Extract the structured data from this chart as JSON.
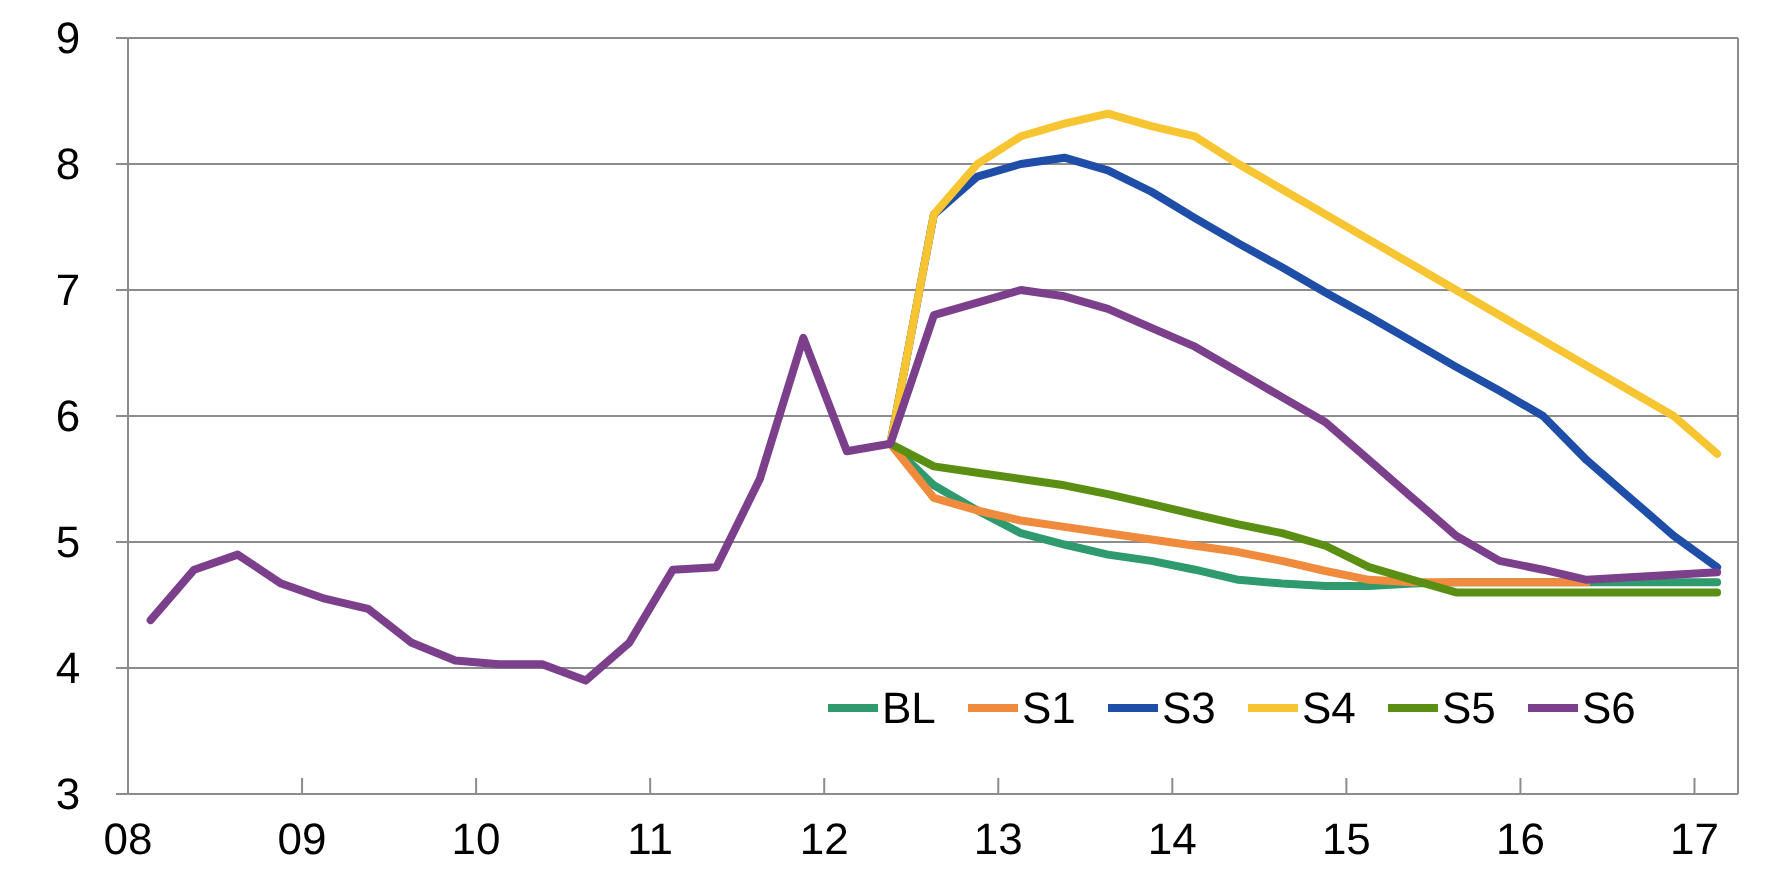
{
  "chart_data": {
    "type": "line",
    "xlim": [
      2008,
      2017.25
    ],
    "ylim": [
      3,
      9
    ],
    "yticks": [
      3,
      4,
      5,
      6,
      7,
      8,
      9
    ],
    "xticks": [
      {
        "value": 2008,
        "label": "08"
      },
      {
        "value": 2009,
        "label": "09"
      },
      {
        "value": 2010,
        "label": "10"
      },
      {
        "value": 2011,
        "label": "11"
      },
      {
        "value": 2012,
        "label": "12"
      },
      {
        "value": 2013,
        "label": "13"
      },
      {
        "value": 2014,
        "label": "14"
      },
      {
        "value": 2015,
        "label": "15"
      },
      {
        "value": 2016,
        "label": "16"
      },
      {
        "value": 2017,
        "label": "17"
      }
    ],
    "grid": "y",
    "legend": "bottom right",
    "marker": "none",
    "line_style": "solid",
    "series": [
      {
        "name": "BL",
        "color": "#2e9a6e",
        "x": [
          2012.38,
          2012.63,
          2012.88,
          2013.13,
          2013.38,
          2013.63,
          2013.88,
          2014.13,
          2014.38,
          2014.63,
          2014.88,
          2015.13,
          2015.38,
          2015.63,
          2015.88,
          2016.13,
          2016.38,
          2016.63,
          2016.88,
          2017.13
        ],
        "values": [
          5.78,
          5.45,
          5.25,
          5.07,
          4.98,
          4.9,
          4.85,
          4.78,
          4.7,
          4.67,
          4.65,
          4.65,
          4.67,
          4.68,
          4.68,
          4.68,
          4.68,
          4.68,
          4.68,
          4.68
        ]
      },
      {
        "name": "S1",
        "color": "#f08a3c",
        "x": [
          2012.38,
          2012.63,
          2012.88,
          2013.13,
          2013.38,
          2013.63,
          2013.88,
          2014.13,
          2014.38,
          2014.63,
          2014.88,
          2015.13,
          2015.38,
          2015.63,
          2015.88,
          2016.13,
          2016.38
        ],
        "values": [
          5.78,
          5.35,
          5.25,
          5.17,
          5.12,
          5.07,
          5.02,
          4.97,
          4.92,
          4.85,
          4.77,
          4.7,
          4.68,
          4.68,
          4.68,
          4.68,
          4.68
        ]
      },
      {
        "name": "S3",
        "color": "#1f4ea8",
        "x": [
          2012.38,
          2012.63,
          2012.88,
          2013.13,
          2013.38,
          2013.63,
          2013.88,
          2014.13,
          2014.38,
          2014.63,
          2014.88,
          2015.13,
          2015.38,
          2015.63,
          2015.88,
          2016.13,
          2016.38,
          2016.63,
          2016.88,
          2017.13
        ],
        "values": [
          5.78,
          7.6,
          7.9,
          8.0,
          8.05,
          7.95,
          7.78,
          7.57,
          7.37,
          7.18,
          6.98,
          6.79,
          6.59,
          6.39,
          6.2,
          6.0,
          5.65,
          5.35,
          5.05,
          4.8
        ]
      },
      {
        "name": "S4",
        "color": "#f7c531",
        "x": [
          2012.38,
          2012.63,
          2012.88,
          2013.13,
          2013.38,
          2013.63,
          2013.88,
          2014.13,
          2014.38,
          2014.63,
          2014.88,
          2015.13,
          2015.38,
          2015.63,
          2015.88,
          2016.13,
          2016.38,
          2016.63,
          2016.88,
          2017.13
        ],
        "values": [
          5.78,
          7.6,
          8.0,
          8.22,
          8.32,
          8.4,
          8.3,
          8.22,
          8.0,
          7.8,
          7.6,
          7.4,
          7.2,
          7.0,
          6.8,
          6.6,
          6.4,
          6.2,
          6.0,
          5.7
        ]
      },
      {
        "name": "S5",
        "color": "#5a8f14",
        "x": [
          2012.38,
          2012.63,
          2012.88,
          2013.13,
          2013.38,
          2013.63,
          2013.88,
          2014.13,
          2014.38,
          2014.63,
          2014.88,
          2015.13,
          2015.38,
          2015.63,
          2015.88,
          2016.13,
          2016.38,
          2016.63,
          2016.88,
          2017.13
        ],
        "values": [
          5.78,
          5.6,
          5.55,
          5.5,
          5.45,
          5.38,
          5.3,
          5.22,
          5.14,
          5.07,
          4.97,
          4.8,
          4.7,
          4.6,
          4.6,
          4.6,
          4.6,
          4.6,
          4.6,
          4.6
        ]
      },
      {
        "name": "S6",
        "color": "#7b3f8c",
        "x": [
          2008.13,
          2008.38,
          2008.63,
          2008.88,
          2009.13,
          2009.38,
          2009.63,
          2009.88,
          2010.13,
          2010.38,
          2010.63,
          2010.88,
          2011.13,
          2011.38,
          2011.63,
          2011.88,
          2012.13,
          2012.38,
          2012.63,
          2012.88,
          2013.13,
          2013.38,
          2013.63,
          2013.88,
          2014.13,
          2014.38,
          2014.63,
          2014.88,
          2015.13,
          2015.38,
          2015.63,
          2015.88,
          2016.13,
          2016.38,
          2016.63,
          2016.88,
          2017.13
        ],
        "values": [
          4.38,
          4.78,
          4.9,
          4.67,
          4.55,
          4.47,
          4.2,
          4.06,
          4.03,
          4.03,
          3.9,
          4.2,
          4.78,
          4.8,
          5.5,
          6.62,
          5.72,
          5.78,
          6.8,
          6.9,
          7.0,
          6.95,
          6.85,
          6.7,
          6.55,
          6.35,
          6.15,
          5.95,
          5.65,
          5.35,
          5.05,
          4.85,
          4.78,
          4.7,
          4.72,
          4.74,
          4.76
        ]
      }
    ]
  }
}
